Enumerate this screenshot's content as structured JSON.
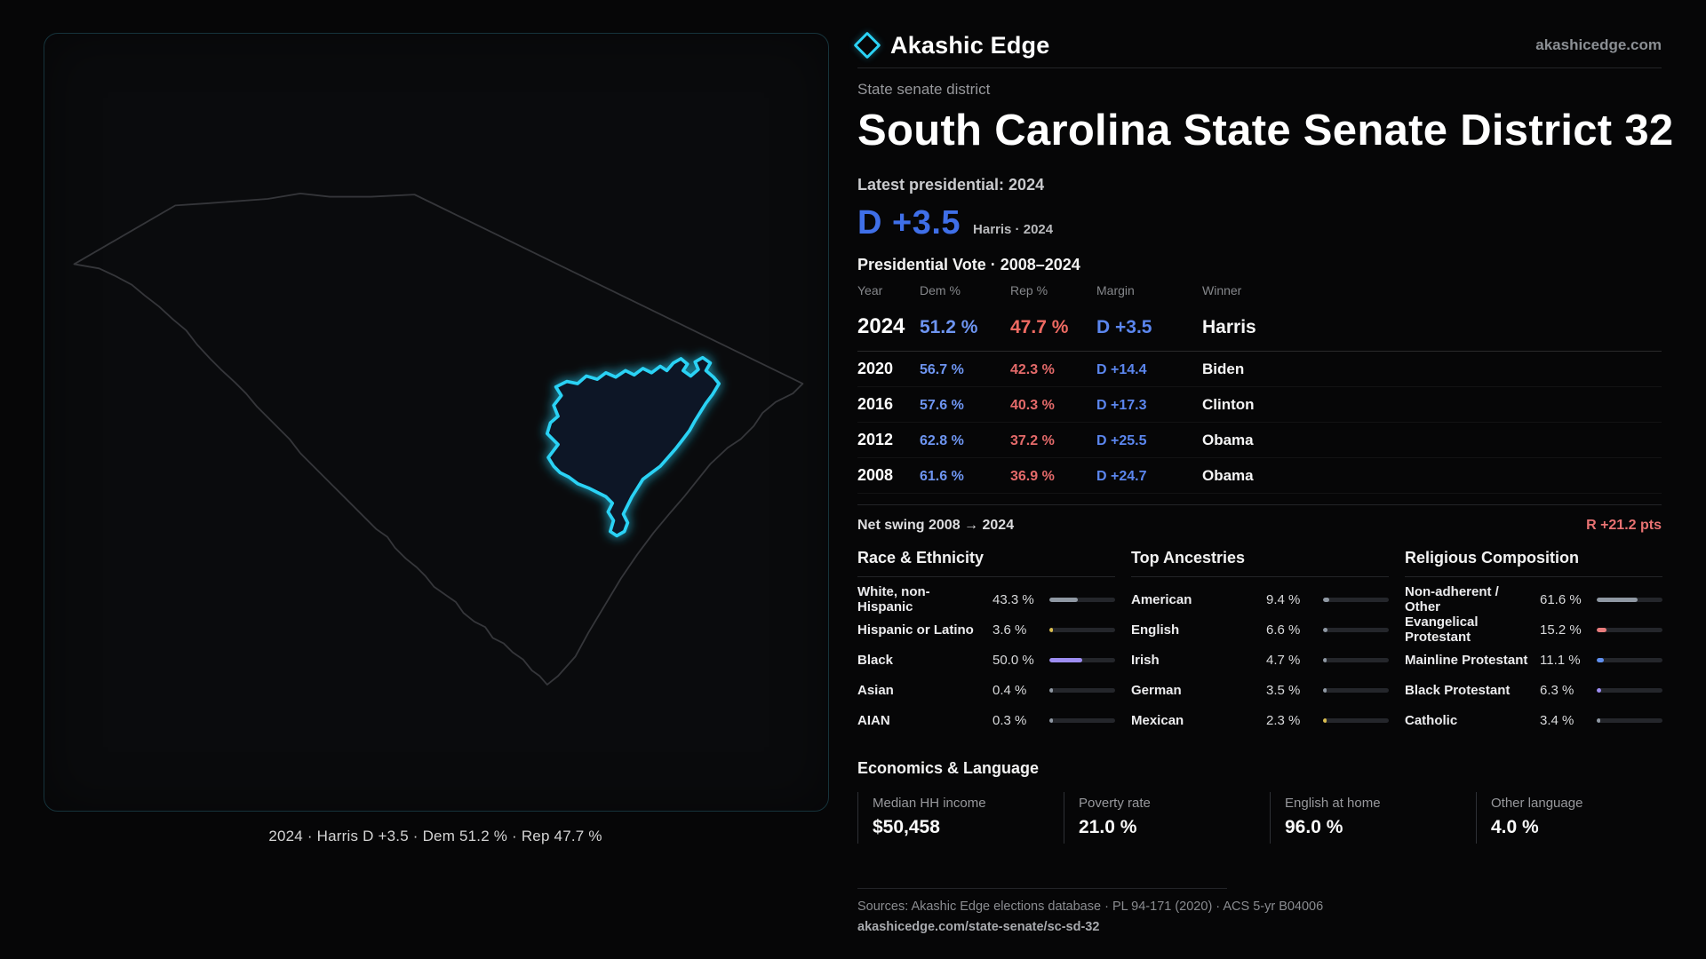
{
  "brand": {
    "name": "Akashic Edge",
    "domain": "akashicedge.com",
    "accent_color": "#2bd2f5",
    "dem_color": "#5f8ff0",
    "rep_color": "#e46a6a"
  },
  "map": {
    "caption": "2024 · Harris D +3.5 · Dem 51.2 % · Rep 47.7 %"
  },
  "header": {
    "kicker": "State senate district",
    "title": "South Carolina State Senate District 32",
    "latest_label": "Latest presidential: 2024",
    "headline_margin": "D +3.5",
    "headline_sub": "Harris · 2024"
  },
  "vote_table": {
    "title": "Presidential Vote · 2008–2024",
    "columns": [
      "Year",
      "Dem %",
      "Rep %",
      "Margin",
      "Winner"
    ],
    "rows": [
      {
        "year": "2024",
        "dem": "51.2 %",
        "rep": "47.7 %",
        "margin": "D +3.5",
        "winner": "Harris"
      },
      {
        "year": "2020",
        "dem": "56.7 %",
        "rep": "42.3 %",
        "margin": "D +14.4",
        "winner": "Biden"
      },
      {
        "year": "2016",
        "dem": "57.6 %",
        "rep": "40.3 %",
        "margin": "D +17.3",
        "winner": "Clinton"
      },
      {
        "year": "2012",
        "dem": "62.8 %",
        "rep": "37.2 %",
        "margin": "D +25.5",
        "winner": "Obama"
      },
      {
        "year": "2008",
        "dem": "61.6 %",
        "rep": "36.9 %",
        "margin": "D +24.7",
        "winner": "Obama"
      }
    ]
  },
  "net_swing": {
    "label": "Net swing 2008 → 2024",
    "value": "R +21.2 pts",
    "color": "#e87272"
  },
  "race": {
    "title": "Race & Ethnicity",
    "items": [
      {
        "label": "White, non-Hispanic",
        "value": "43.3 %",
        "pct": 43.3,
        "color": "#8f98a3"
      },
      {
        "label": "Hispanic or Latino",
        "value": "3.6 %",
        "pct": 3.6,
        "color": "#d9bd4f"
      },
      {
        "label": "Black",
        "value": "50.0 %",
        "pct": 50.0,
        "color": "#9d8df2"
      },
      {
        "label": "Asian",
        "value": "0.4 %",
        "pct": 0.4,
        "color": "#8f98a3"
      },
      {
        "label": "AIAN",
        "value": "0.3 %",
        "pct": 0.3,
        "color": "#8f98a3"
      }
    ]
  },
  "ancestries": {
    "title": "Top Ancestries",
    "items": [
      {
        "label": "American",
        "value": "9.4 %",
        "pct": 9.4,
        "color": "#8f98a3"
      },
      {
        "label": "English",
        "value": "6.6 %",
        "pct": 6.6,
        "color": "#8f98a3"
      },
      {
        "label": "Irish",
        "value": "4.7 %",
        "pct": 4.7,
        "color": "#8f98a3"
      },
      {
        "label": "German",
        "value": "3.5 %",
        "pct": 3.5,
        "color": "#8f98a3"
      },
      {
        "label": "Mexican",
        "value": "2.3 %",
        "pct": 2.3,
        "color": "#d9bd4f"
      }
    ]
  },
  "religion": {
    "title": "Religious Composition",
    "items": [
      {
        "label": "Non-adherent / Other",
        "value": "61.6 %",
        "pct": 61.6,
        "color": "#8f98a3"
      },
      {
        "label": "Evangelical Protestant",
        "value": "15.2 %",
        "pct": 15.2,
        "color": "#e87c7c"
      },
      {
        "label": "Mainline Protestant",
        "value": "11.1 %",
        "pct": 11.1,
        "color": "#5f8ff0"
      },
      {
        "label": "Black Protestant",
        "value": "6.3 %",
        "pct": 6.3,
        "color": "#9d8df2"
      },
      {
        "label": "Catholic",
        "value": "3.4 %",
        "pct": 3.4,
        "color": "#8f98a3"
      }
    ]
  },
  "economics": {
    "title": "Economics & Language",
    "stats": [
      {
        "label": "Median HH income",
        "value": "$50,458"
      },
      {
        "label": "Poverty rate",
        "value": "21.0 %"
      },
      {
        "label": "English at home",
        "value": "96.0 %"
      },
      {
        "label": "Other language",
        "value": "4.0 %"
      }
    ]
  },
  "footer": {
    "sources": "Sources: Akashic Edge elections database · PL 94-171 (2020) · ACS 5-yr B04006",
    "permalink": "akashicedge.com/state-senate/sc-sd-32"
  }
}
